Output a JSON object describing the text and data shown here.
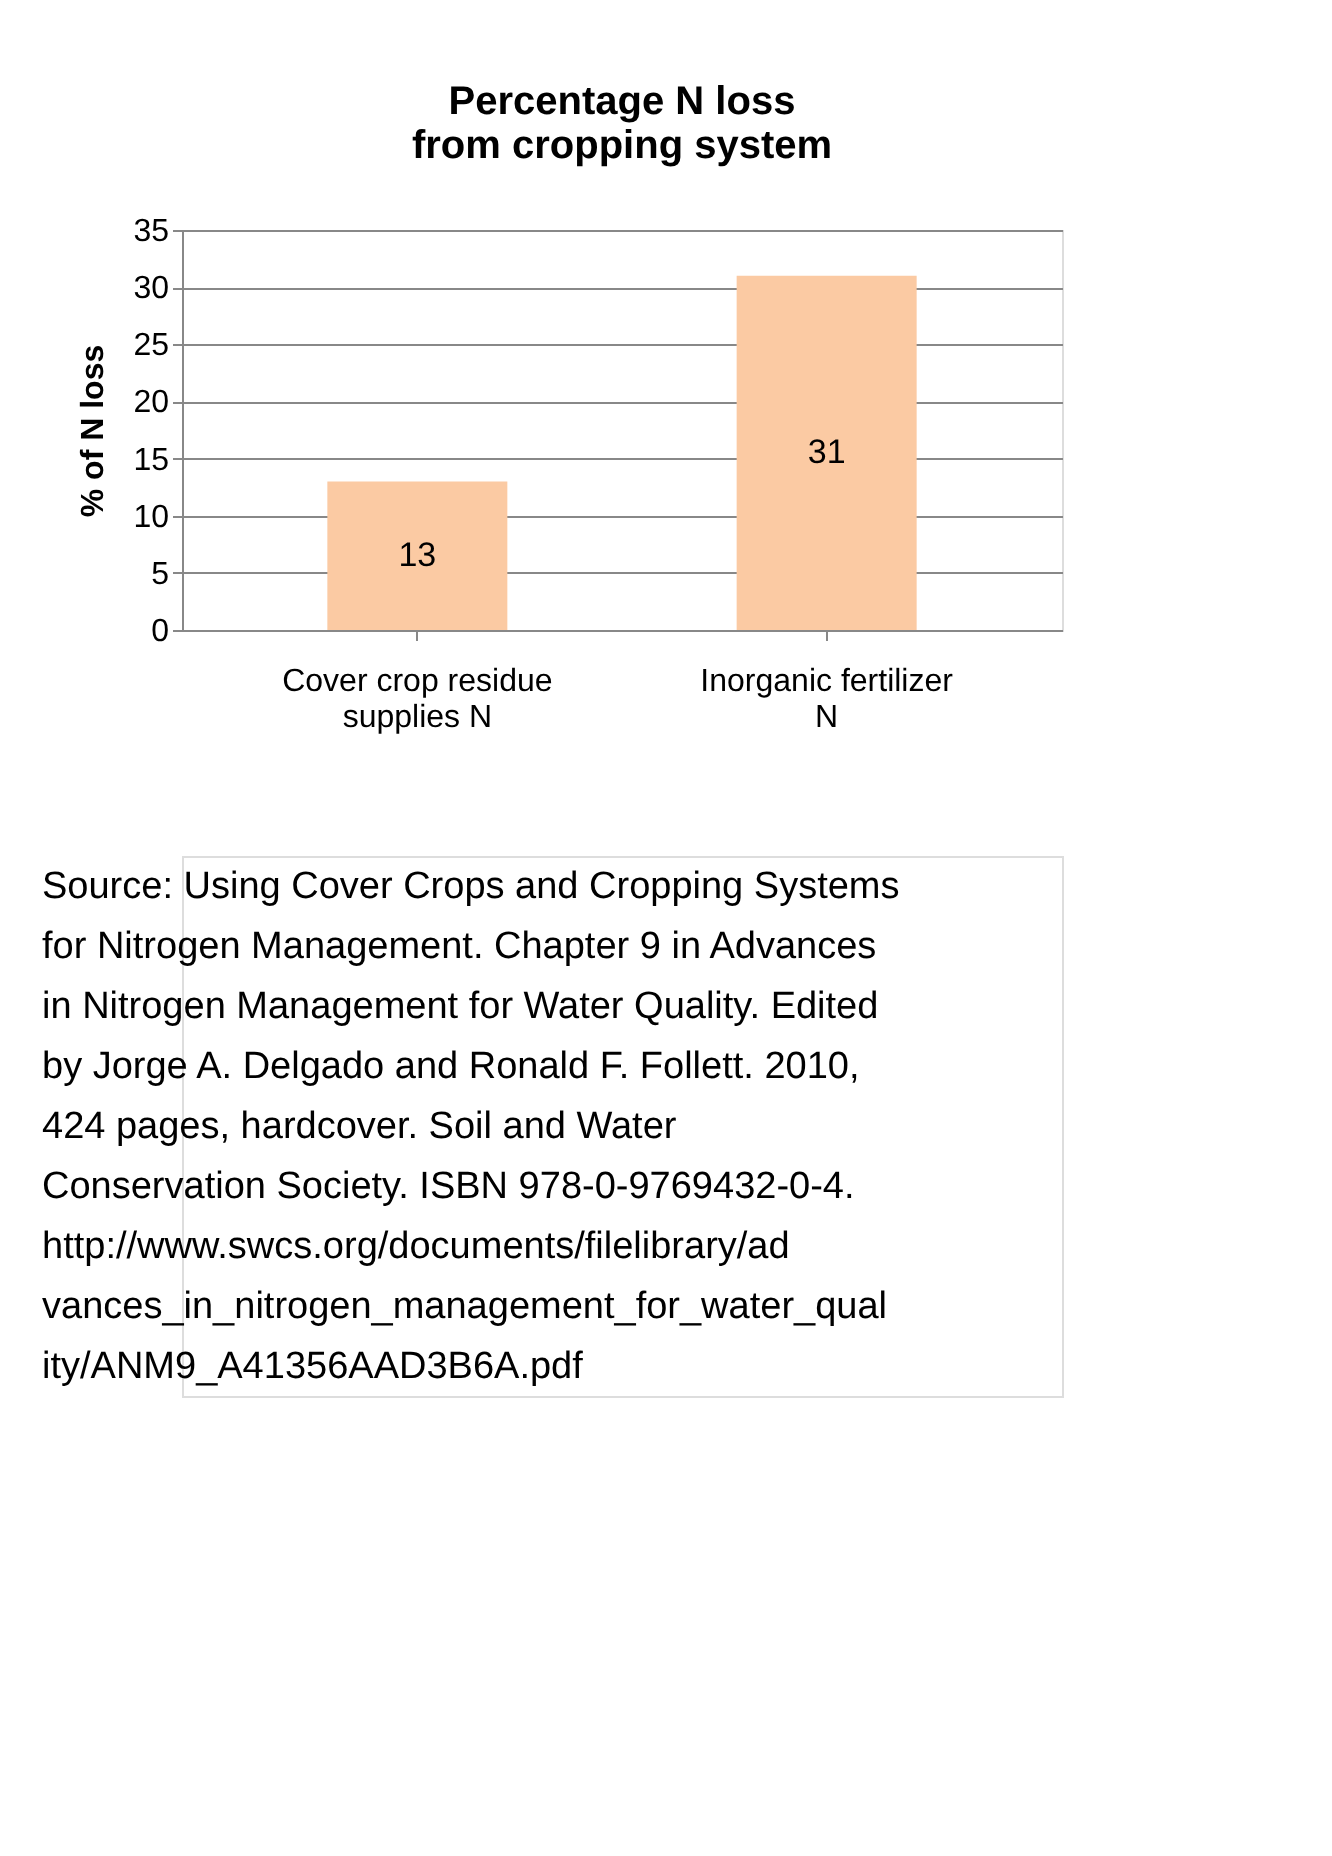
{
  "chart_data": {
    "type": "bar",
    "title": "Percentage N loss from cropping system",
    "categories": [
      "Cover crop residue supplies N",
      "Inorganic fertilizer N"
    ],
    "values": [
      13,
      31
    ],
    "color": "#fbcaa3",
    "data_labels": true,
    "ylabel": "% of N loss",
    "ylim": [
      0,
      35
    ],
    "yticks": [
      0,
      5,
      10,
      15,
      20,
      25,
      30,
      35
    ],
    "grid": "y",
    "annotations": [
      "Source: Using Cover Crops and Cropping Systems for Nitrogen Management. Chapter 9 in Advances in Nitrogen Management for Water Quality. Edited by Jorge A. Delgado and Ronald F. Follett. 2010, 424 pages, hardcover. Soil and Water Conservation Society. ISBN 978-0-9769432-0-4.",
      "http://www.swcs.org/documents/filelibrary/advances_in_nitrogen_management_for_water_quality/ANM9_A41356AAD3B6A.pdf"
    ]
  }
}
